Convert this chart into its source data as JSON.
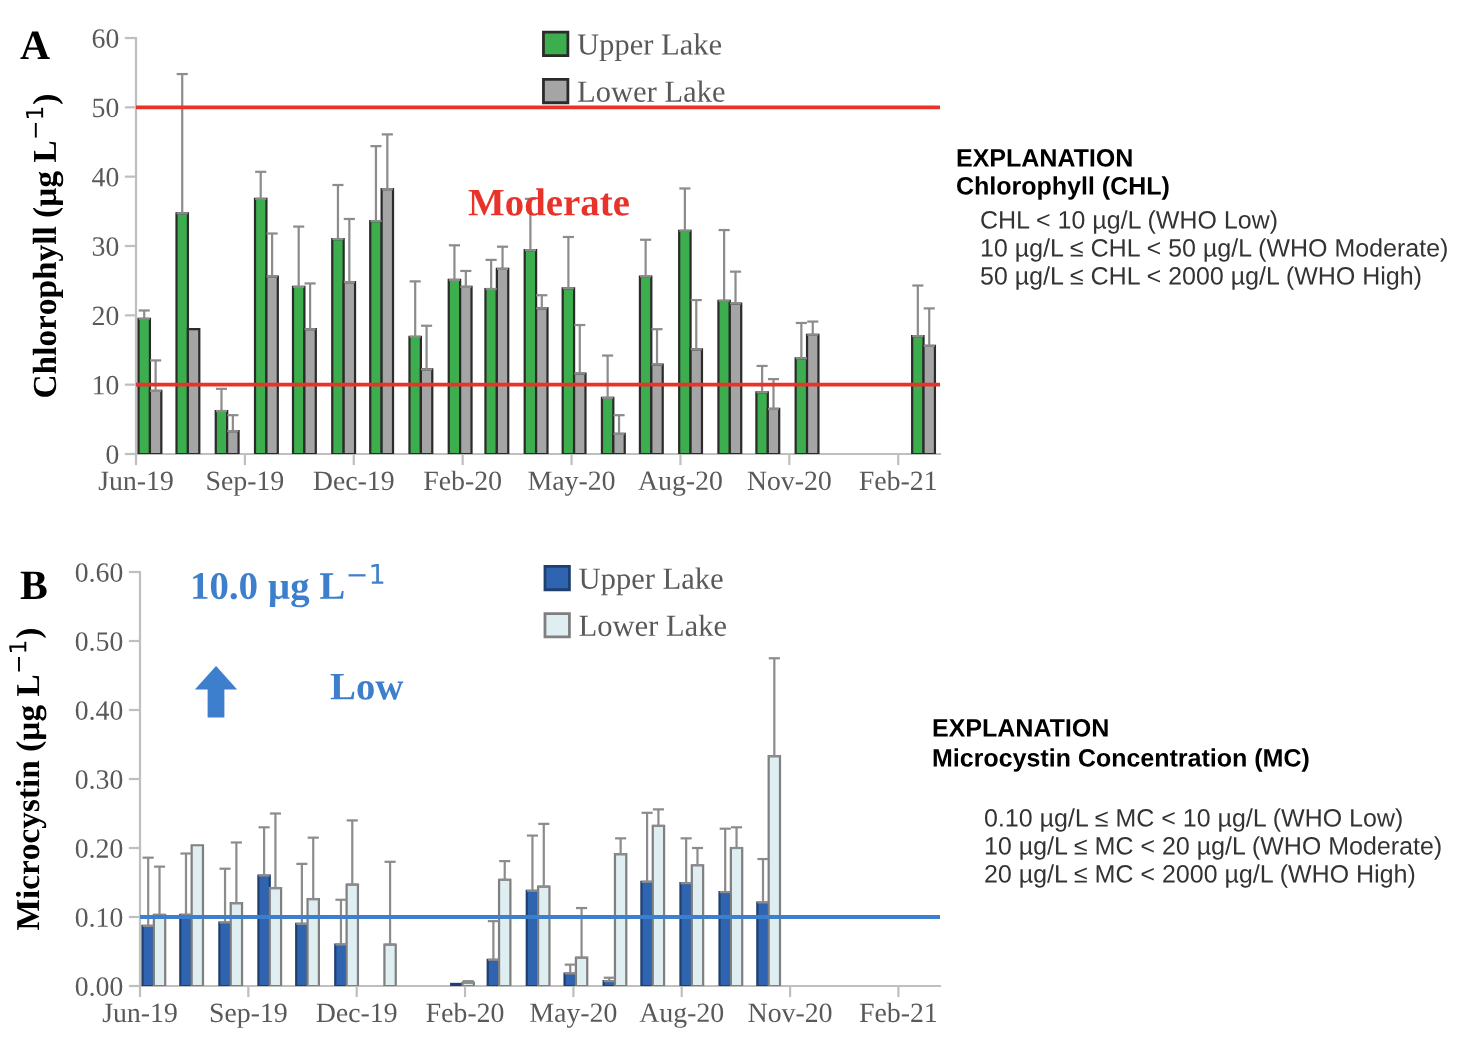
{
  "chart_data": [
    {
      "type": "bar",
      "title": "A",
      "ylabel": "Chlorophyll (µg L$^{−1}$)",
      "x": [
        "2019-06-25",
        "2019-07-25",
        "2019-08-25",
        "2019-09-25",
        "2019-10-25",
        "2019-11-25",
        "2019-12-25",
        "2020-01-25",
        "2020-02-25",
        "2020-03-25",
        "2020-04-25",
        "2020-05-25",
        "2020-06-25",
        "2020-07-25",
        "2020-08-25",
        "2020-09-25",
        "2020-10-25",
        "2020-11-25",
        "2021-02-25"
      ],
      "series": [
        {
          "name": "Upper Lake",
          "color": "#3cae4e",
          "values": [
            19.5,
            34.7,
            6.2,
            36.8,
            24.1,
            31,
            33.6,
            16.9,
            25.1,
            23.8,
            29.4,
            23.9,
            8.1,
            25.6,
            32.2,
            22.1,
            8.9,
            13.8,
            17
          ],
          "errors": [
            [
              19.5,
              20.7
            ],
            [
              34.7,
              54.8
            ],
            [
              6.2,
              9.4
            ],
            [
              36.8,
              40.7
            ],
            [
              24.1,
              32.8
            ],
            [
              31,
              38.8
            ],
            [
              33.6,
              44.4
            ],
            [
              16.9,
              24.9
            ],
            [
              25.1,
              30.1
            ],
            [
              23.8,
              28
            ],
            [
              29.4,
              36.8
            ],
            [
              23.9,
              31.3
            ],
            [
              8.1,
              14.2
            ],
            [
              25.6,
              30.9
            ],
            [
              32.2,
              38.3
            ],
            [
              22.1,
              32.3
            ],
            [
              8.9,
              12.7
            ],
            [
              13.8,
              18.9
            ],
            [
              17,
              24.3
            ]
          ]
        },
        {
          "name": "Lower Lake",
          "color": "#a5a5a5",
          "values": [
            9.1,
            18,
            3.3,
            25.6,
            18,
            24.8,
            38.2,
            12.2,
            24.1,
            26.7,
            21,
            11.6,
            2.9,
            12.9,
            15.1,
            21.7,
            6.5,
            17.2,
            15.6
          ],
          "errors": [
            [
              9.1,
              13.5
            ],
            null,
            [
              3.3,
              5.6
            ],
            [
              25.6,
              31.8
            ],
            [
              18,
              24.6
            ],
            [
              24.8,
              33.9
            ],
            [
              38.2,
              46.1
            ],
            [
              12.2,
              18.5
            ],
            [
              24.1,
              26.4
            ],
            [
              26.7,
              29.9
            ],
            [
              21,
              22.9
            ],
            [
              11.6,
              18.6
            ],
            [
              2.9,
              5.6
            ],
            [
              12.9,
              18
            ],
            [
              15.1,
              22.2
            ],
            [
              21.7,
              26.3
            ],
            [
              6.5,
              10.8
            ],
            [
              17.2,
              19.1
            ],
            [
              15.6,
              21
            ]
          ]
        }
      ],
      "xlim": [
        "2019-06-14",
        "2021-03-10"
      ],
      "xticks": [
        {
          "value": "2019-06-14",
          "label": "Jun-19"
        },
        {
          "value": "2019-09-08",
          "label": "Sep-19"
        },
        {
          "value": "2019-12-03",
          "label": "Dec-19"
        },
        {
          "value": "2020-02-27",
          "label": "Feb-20"
        },
        {
          "value": "2020-05-23",
          "label": "May-20"
        },
        {
          "value": "2020-08-17",
          "label": "Aug-20"
        },
        {
          "value": "2020-11-11",
          "label": "Nov-20"
        },
        {
          "value": "2021-02-05",
          "label": "Feb-21"
        }
      ],
      "ylim": [
        0,
        60
      ],
      "yticks": [
        0,
        10,
        20,
        30,
        40,
        50,
        60
      ],
      "ref_lines": [
        {
          "axis": "y",
          "value": 50,
          "color": "#e8332a"
        },
        {
          "axis": "y",
          "value": 10,
          "color": "#e8332a"
        }
      ],
      "annotations": [
        "Moderate",
        "EXPLANATION",
        "Chlorophyll (CHL)",
        "CHL < 10 µg/L (WHO Low)",
        "10 µg/L ≤ CHL < 50 µg/L (WHO Moderate)",
        "50 µg/L ≤ CHL < 2000 µg/L (WHO High)"
      ],
      "legend": "top"
    },
    {
      "type": "bar",
      "title": "B",
      "ylabel": "Microcystin (µg L$^{−1}$)",
      "x": [
        "2019-06-25",
        "2019-07-25",
        "2019-08-25",
        "2019-09-25",
        "2019-10-25",
        "2019-11-25",
        "2019-12-25",
        "2020-01-25",
        "2020-02-25",
        "2020-03-25",
        "2020-04-25",
        "2020-05-25",
        "2020-06-25",
        "2020-07-25",
        "2020-08-25",
        "2020-09-25",
        "2020-10-25"
      ],
      "series": [
        {
          "name": "Upper Lake",
          "color": "#2f64b0",
          "values": [
            0.087,
            0.103,
            0.092,
            0.16,
            0.09,
            0.06,
            null,
            null,
            0.003,
            0.038,
            0.138,
            0.018,
            0.007,
            0.151,
            0.149,
            0.136,
            0.121
          ],
          "errors": [
            [
              0.087,
              0.186
            ],
            [
              0.103,
              0.192
            ],
            [
              0.092,
              0.17
            ],
            [
              0.16,
              0.23
            ],
            [
              0.09,
              0.177
            ],
            [
              0.06,
              0.125
            ],
            null,
            null,
            null,
            [
              0.038,
              0.094
            ],
            [
              0.138,
              0.218
            ],
            [
              0.018,
              0.031
            ],
            [
              0.007,
              0.012
            ],
            [
              0.151,
              0.251
            ],
            [
              0.149,
              0.214
            ],
            [
              0.136,
              0.228
            ],
            [
              0.121,
              0.184
            ]
          ]
        },
        {
          "name": "Lower Lake",
          "color": "#deeef1",
          "values": [
            0.103,
            0.204,
            0.12,
            0.142,
            0.126,
            0.147,
            0.06,
            null,
            0.005,
            0.154,
            0.144,
            0.041,
            0.191,
            0.232,
            0.175,
            0.2,
            0.333
          ],
          "errors": [
            [
              0.103,
              0.173
            ],
            null,
            [
              0.12,
              0.208
            ],
            [
              0.142,
              0.25
            ],
            [
              0.126,
              0.215
            ],
            [
              0.147,
              0.24
            ],
            [
              0.06,
              0.18
            ],
            null,
            [
              0.005,
              0.007
            ],
            [
              0.154,
              0.181
            ],
            [
              0.144,
              0.235
            ],
            [
              0.041,
              0.113
            ],
            [
              0.191,
              0.214
            ],
            [
              0.232,
              0.256
            ],
            [
              0.175,
              0.2
            ],
            [
              0.2,
              0.23
            ],
            [
              0.333,
              0.475
            ]
          ]
        }
      ],
      "xlim": [
        "2019-06-14",
        "2021-03-10"
      ],
      "xticks": [
        {
          "value": "2019-06-14",
          "label": "Jun-19"
        },
        {
          "value": "2019-09-08",
          "label": "Sep-19"
        },
        {
          "value": "2019-12-03",
          "label": "Dec-19"
        },
        {
          "value": "2020-02-27",
          "label": "Feb-20"
        },
        {
          "value": "2020-05-23",
          "label": "May-20"
        },
        {
          "value": "2020-08-17",
          "label": "Aug-20"
        },
        {
          "value": "2020-11-11",
          "label": "Nov-20"
        },
        {
          "value": "2021-02-05",
          "label": "Feb-21"
        }
      ],
      "ylim": [
        0,
        0.6
      ],
      "yticks": [
        {
          "value": 0,
          "label": "0.00"
        },
        {
          "value": 0.1,
          "label": "0.10"
        },
        {
          "value": 0.2,
          "label": "0.20"
        },
        {
          "value": 0.3,
          "label": "0.30"
        },
        {
          "value": 0.4,
          "label": "0.40"
        },
        {
          "value": 0.5,
          "label": "0.50"
        },
        {
          "value": 0.6,
          "label": "0.60"
        }
      ],
      "ref_lines": [
        {
          "axis": "y",
          "value": 0.1,
          "color": "#3d7fcc"
        }
      ],
      "annotations": [
        "10.0 µg L$^{−1}$",
        "Low",
        "EXPLANATION",
        "Microcystin Concentration (MC)",
        "0.10 µg/L ≤ MC < 10 µg/L (WHO Low)",
        "10 µg/L ≤ MC < 20 µg/L (WHO Moderate)",
        "20 µg/L ≤ MC < 2000 µg/L (WHO High)"
      ],
      "legend": "top"
    }
  ]
}
